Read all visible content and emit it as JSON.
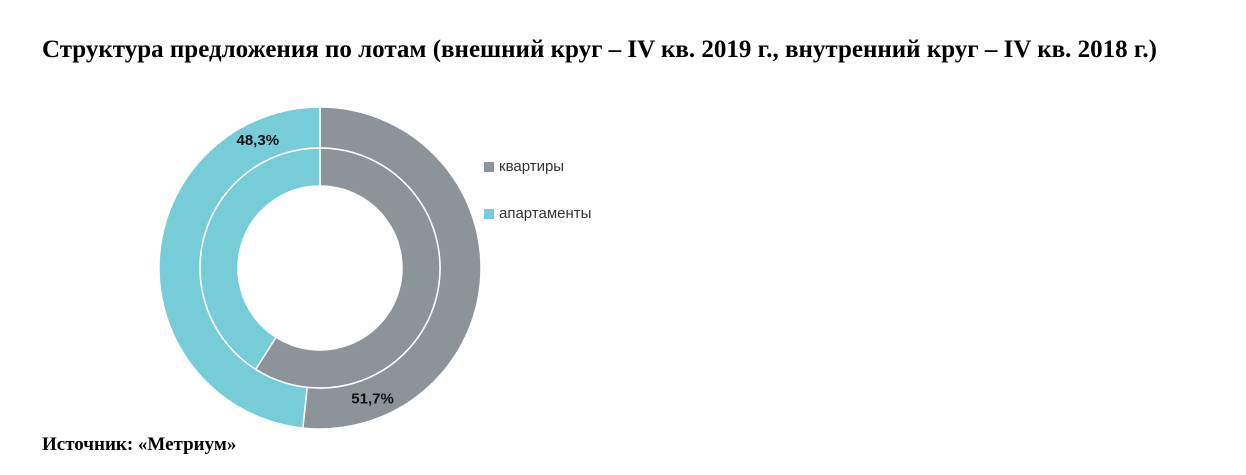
{
  "chart_data": {
    "type": "donut",
    "title": "Структура предложения по лотам (внешний круг – IV кв. 2019 г., внутренний круг – IV кв. 2018 г.)",
    "categories": [
      "квартиры",
      "апартаменты"
    ],
    "colors": [
      "#8c9399",
      "#76cdd8"
    ],
    "series": [
      {
        "values": [
          51.7,
          48.3
        ],
        "value_labels": [
          "51,7%",
          "48,3%"
        ]
      },
      {
        "values": [
          59,
          41
        ]
      }
    ],
    "legend": "right",
    "source": "Источник: «Метриум»"
  }
}
